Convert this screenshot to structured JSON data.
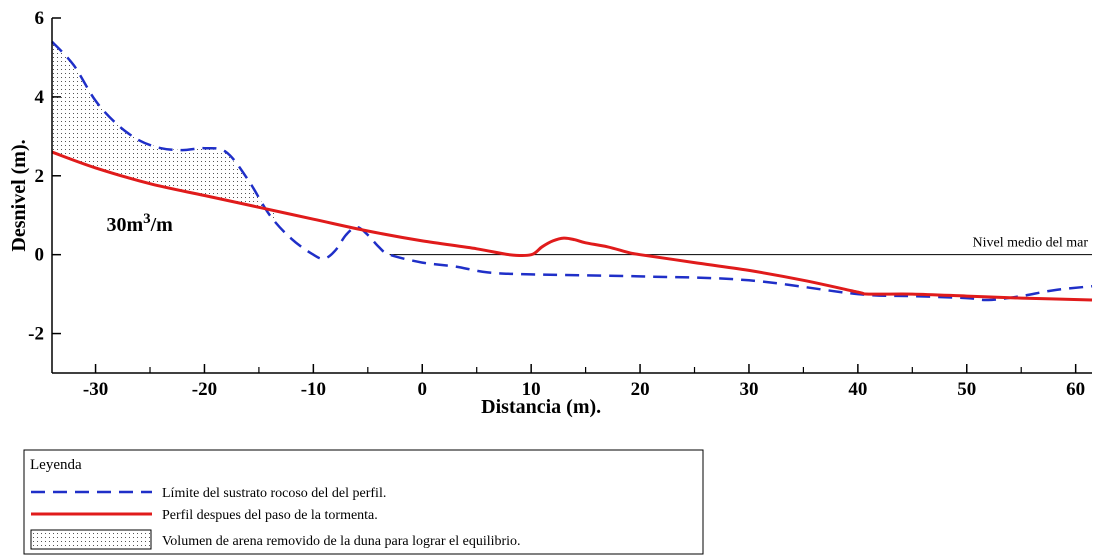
{
  "chart_data": {
    "type": "line",
    "xlabel": "Distancia (m).",
    "ylabel": "Desnivel (m).",
    "xlim": [
      -34,
      61.5
    ],
    "ylim": [
      -3,
      6
    ],
    "x_ticks": [
      -30,
      -20,
      -10,
      0,
      10,
      20,
      30,
      40,
      50,
      60
    ],
    "y_ticks": [
      -2,
      0,
      2,
      4,
      6
    ],
    "x_minor_ticks": [
      -25,
      -15,
      -5,
      5,
      15,
      25,
      35,
      45,
      55
    ],
    "grid": false,
    "legend_position": "bottom-left",
    "reference_line": {
      "label": "Nivel medio del mar",
      "y": 0
    },
    "volume_annotation": {
      "base": "30m",
      "exponent": "3",
      "suffix": "/m"
    },
    "colors": {
      "bedrock": "#1f2fc8",
      "profile": "#e01b1b",
      "fill_dots": "#555555"
    },
    "series": [
      {
        "name": "Límite del sustrato rocoso del del perfil.",
        "style": "dashed",
        "x": [
          -34,
          -32,
          -30,
          -28,
          -26,
          -24,
          -22,
          -20,
          -18,
          -16,
          -14,
          -12,
          -10,
          -9,
          -8,
          -7,
          -6,
          -5,
          -4,
          -3,
          0,
          3,
          6,
          10,
          20,
          30,
          40,
          45,
          50,
          52,
          55,
          58,
          61.5
        ],
        "y": [
          5.4,
          4.8,
          3.9,
          3.3,
          2.9,
          2.7,
          2.65,
          2.7,
          2.6,
          1.9,
          1.0,
          0.4,
          0.0,
          -0.1,
          0.1,
          0.5,
          0.7,
          0.5,
          0.2,
          0.0,
          -0.2,
          -0.3,
          -0.45,
          -0.5,
          -0.55,
          -0.65,
          -1.0,
          -1.05,
          -1.1,
          -1.15,
          -1.05,
          -0.9,
          -0.8
        ]
      },
      {
        "name": "Perfil  despues del paso de la tormenta.",
        "style": "solid",
        "x": [
          -34,
          -30,
          -25,
          -20,
          -15,
          -10,
          -5,
          0,
          5,
          8,
          10,
          11,
          12,
          13,
          14,
          15,
          17,
          19,
          20,
          25,
          30,
          35,
          40,
          41,
          45,
          50,
          55,
          61.5
        ],
        "y": [
          2.6,
          2.2,
          1.8,
          1.5,
          1.2,
          0.9,
          0.6,
          0.35,
          0.15,
          0.0,
          0.0,
          0.2,
          0.35,
          0.42,
          0.38,
          0.3,
          0.2,
          0.05,
          0.0,
          -0.2,
          -0.4,
          -0.65,
          -0.95,
          -1.0,
          -1.0,
          -1.05,
          -1.1,
          -1.15
        ]
      }
    ],
    "fill_region": {
      "name": "Volumen de arena removido de la duna para lograr el equilibrio.",
      "x_range": [
        -34,
        -13.5
      ]
    }
  },
  "legend": {
    "title": "Leyenda",
    "items": [
      {
        "label": "Límite del sustrato rocoso del del perfil."
      },
      {
        "label": "Perfil  despues del paso de la tormenta."
      },
      {
        "label": "Volumen de arena removido de la duna para lograr el equilibrio."
      }
    ]
  }
}
